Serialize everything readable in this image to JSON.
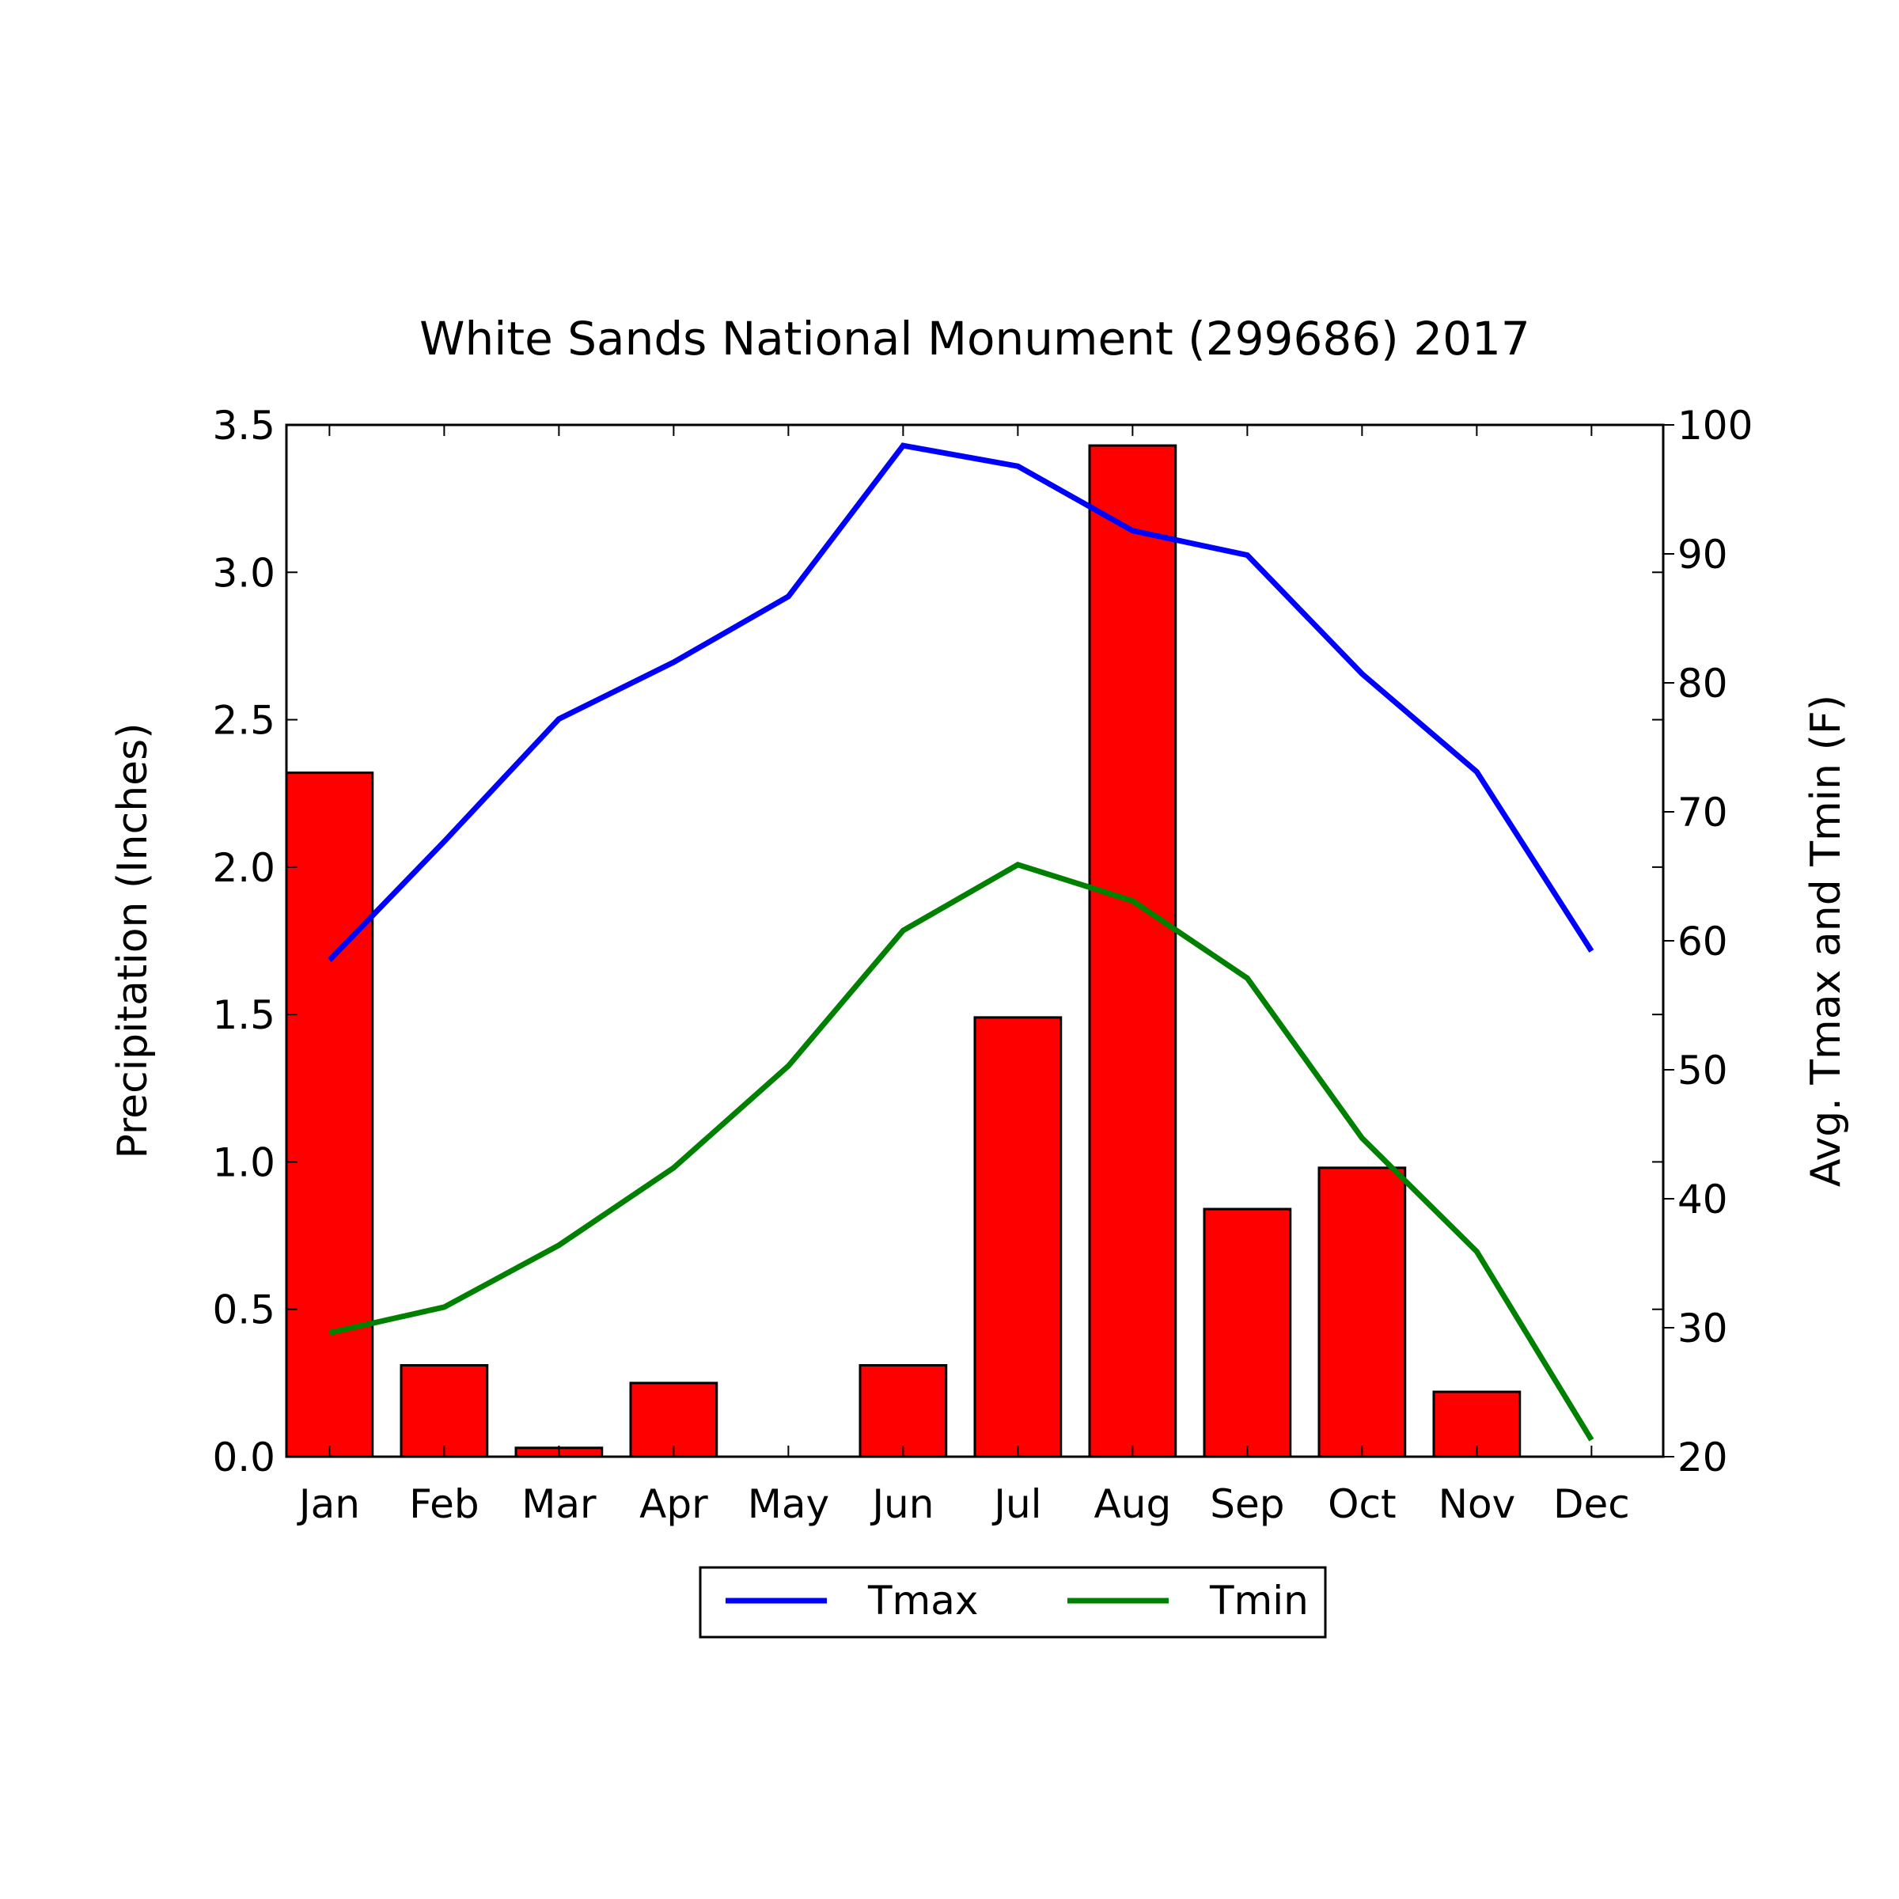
{
  "chart_data": {
    "type": "bar",
    "title": "White Sands National Monument (299686) 2017",
    "categories": [
      "Jan",
      "Feb",
      "Mar",
      "Apr",
      "May",
      "Jun",
      "Jul",
      "Aug",
      "Sep",
      "Oct",
      "Nov",
      "Dec"
    ],
    "bars": {
      "name": "Precipitation",
      "values": [
        2.32,
        0.31,
        0.03,
        0.25,
        0.0,
        0.31,
        1.49,
        3.43,
        0.84,
        0.98,
        0.22,
        0.0
      ],
      "color": "#ff0000",
      "axis": "left"
    },
    "series": [
      {
        "name": "Tmax",
        "type": "line",
        "axis": "right",
        "color": "#0000ff",
        "values": [
          58.5,
          67.7,
          77.2,
          81.6,
          86.7,
          98.4,
          96.8,
          91.8,
          89.9,
          80.7,
          73.1,
          59.2
        ]
      },
      {
        "name": "Tmin",
        "type": "line",
        "axis": "right",
        "color": "#008000",
        "values": [
          29.6,
          31.6,
          36.4,
          42.4,
          50.3,
          60.8,
          65.9,
          63.1,
          57.1,
          44.7,
          35.9,
          21.3
        ]
      }
    ],
    "ylabel": "Precipitation (Inches)",
    "ylim": [
      0,
      3.5
    ],
    "yticks": [
      "0.0",
      "0.5",
      "1.0",
      "1.5",
      "2.0",
      "2.5",
      "3.0",
      "3.5"
    ],
    "y2label": "Avg. Tmax and Tmin (F)",
    "y2lim": [
      20,
      100
    ],
    "y2ticks": [
      "20",
      "30",
      "40",
      "50",
      "60",
      "70",
      "80",
      "90",
      "100"
    ],
    "grid": false,
    "legend": {
      "placement": "bottom-center",
      "entries": [
        "Tmax",
        "Tmin"
      ]
    }
  }
}
